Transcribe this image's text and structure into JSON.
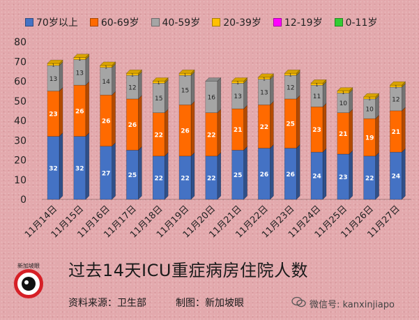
{
  "chart_data": {
    "type": "bar",
    "stacked": true,
    "categories": [
      "11月14日",
      "11月15日",
      "11月16日",
      "11月17日",
      "11月18日",
      "11月19日",
      "11月20日",
      "11月21日",
      "11月22日",
      "11月23日",
      "11月24日",
      "11月25日",
      "11月26日",
      "11月27日"
    ],
    "series": [
      {
        "name": "70岁以上",
        "color": "#4472c4",
        "values": [
          32,
          32,
          27,
          25,
          22,
          22,
          22,
          25,
          26,
          26,
          24,
          23,
          22,
          24
        ]
      },
      {
        "name": "60-69岁",
        "color": "#ff6a00",
        "values": [
          23,
          26,
          26,
          26,
          22,
          26,
          22,
          21,
          22,
          25,
          23,
          21,
          19,
          21
        ]
      },
      {
        "name": "40-59岁",
        "color": "#a5a5a5",
        "values": [
          13,
          13,
          14,
          12,
          15,
          15,
          16,
          13,
          13,
          12,
          11,
          10,
          10,
          12
        ]
      },
      {
        "name": "20-39岁",
        "color": "#ffc000",
        "values": [
          1,
          1,
          1,
          1,
          1,
          1,
          0,
          1,
          1,
          1,
          1,
          1,
          1,
          1
        ]
      },
      {
        "name": "12-19岁",
        "color": "#ff00ff",
        "values": [
          0,
          0,
          0,
          0,
          0,
          0,
          0,
          0,
          0,
          0,
          0,
          0,
          0,
          0
        ]
      },
      {
        "name": "0-11岁",
        "color": "#33cc33",
        "values": [
          0,
          0,
          0,
          0,
          0,
          0,
          0,
          0,
          0,
          0,
          0,
          0,
          0,
          0
        ]
      }
    ],
    "ylim": [
      0,
      80
    ],
    "yticks": [
      0,
      10,
      20,
      30,
      40,
      50,
      60,
      70,
      80
    ],
    "grid": false,
    "legend_position": "top",
    "title": "过去14天ICU重症病房住院人数"
  },
  "footer": {
    "title": "过去14天ICU重症病房住院人数",
    "source": "资料来源：卫生部",
    "maker": "制图：新加坡眼",
    "wechat_label": "微信号: kanxinjiapo",
    "logo_text": "新加坡眼"
  },
  "icons": {
    "logo": "eye-logo-icon",
    "wechat": "wechat-icon"
  }
}
